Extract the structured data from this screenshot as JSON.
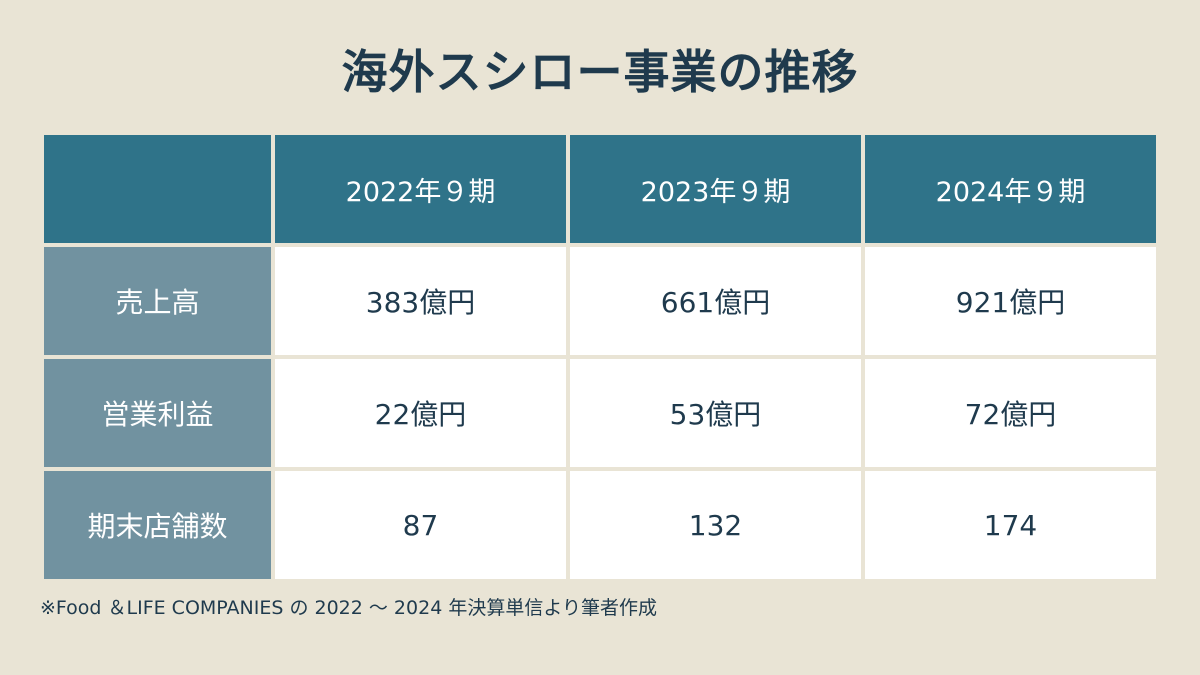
{
  "title": "海外スシロー事業の推移",
  "chart_data": {
    "type": "table",
    "title": "海外スシロー事業の推移",
    "columns": [
      "",
      "2022年９期",
      "2023年９期",
      "2024年９期"
    ],
    "rows": [
      {
        "label": "売上高",
        "values": [
          "383億円",
          "661億円",
          "921億円"
        ]
      },
      {
        "label": "営業利益",
        "values": [
          "22億円",
          "53億円",
          "72億円"
        ]
      },
      {
        "label": "期末店舗数",
        "values": [
          "87",
          "132",
          "174"
        ]
      }
    ]
  },
  "note": "※Food ＆LIFE COMPANIES の 2022 〜 2024 年決算単信より筆者作成",
  "colors": {
    "background": "#e9e4d5",
    "header": "#2f7389",
    "row_header": "#7192a0",
    "cell": "#ffffff",
    "text": "#1f3a4d"
  }
}
